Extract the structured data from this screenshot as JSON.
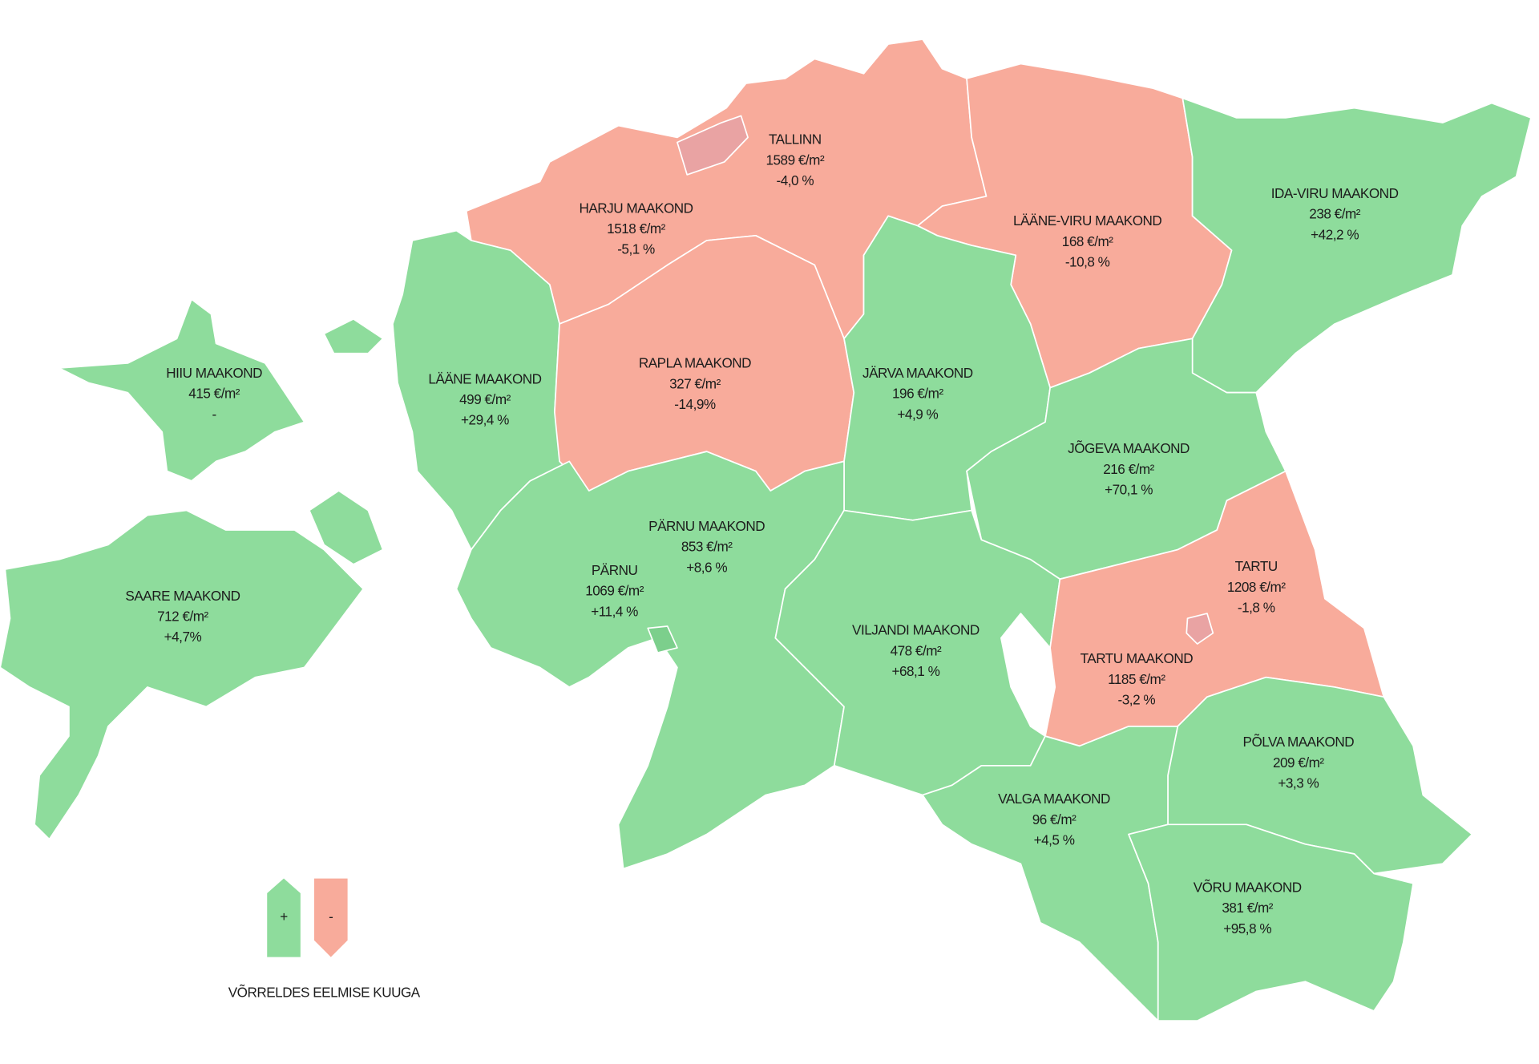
{
  "regions": [
    {
      "name": "HARJU MAAKOND",
      "price": "1518 €/m²",
      "change": "-5,1 %",
      "color": "#f8ab9b"
    },
    {
      "name": "TALLINN",
      "price": "1589 €/m²",
      "change": "-4,0 %",
      "color": "#e9a3a3"
    },
    {
      "name": "LÄÄNE-VIRU MAAKOND",
      "price": "168 €/m²",
      "change": "-10,8 %",
      "color": "#f8ab9b"
    },
    {
      "name": "IDA-VIRU MAAKOND",
      "price": "238 €/m²",
      "change": "+42,2 %",
      "color": "#8edc9c"
    },
    {
      "name": "HIIU MAAKOND",
      "price": "415 €/m²",
      "change": "-",
      "color": "#8edc9c"
    },
    {
      "name": "LÄÄNE MAAKOND",
      "price": "499 €/m²",
      "change": "+29,4 %",
      "color": "#8edc9c"
    },
    {
      "name": "RAPLA MAAKOND",
      "price": "327 €/m²",
      "change": "-14,9%",
      "color": "#f8ab9b"
    },
    {
      "name": "JÄRVA MAAKOND",
      "price": "196 €/m²",
      "change": "+4,9 %",
      "color": "#8edc9c"
    },
    {
      "name": "JÕGEVA MAAKOND",
      "price": "216 €/m²",
      "change": "+70,1 %",
      "color": "#8edc9c"
    },
    {
      "name": "PÄRNU MAAKOND",
      "price": "853 €/m²",
      "change": "+8,6 %",
      "color": "#8edc9c"
    },
    {
      "name": "PÄRNU",
      "price": "1069 €/m²",
      "change": "+11,4 %",
      "color": "#7ccf8c"
    },
    {
      "name": "SAARE MAAKOND",
      "price": "712 €/m²",
      "change": "+4,7%",
      "color": "#8edc9c"
    },
    {
      "name": "VILJANDI MAAKOND",
      "price": "478 €/m²",
      "change": "+68,1 %",
      "color": "#8edc9c"
    },
    {
      "name": "TARTU MAAKOND",
      "price": "1185 €/m²",
      "change": "-3,2 %",
      "color": "#f8ab9b"
    },
    {
      "name": "TARTU",
      "price": "1208 €/m²",
      "change": "-1,8 %",
      "color": "#e9a3a3"
    },
    {
      "name": "PÕLVA MAAKOND",
      "price": "209 €/m²",
      "change": "+3,3 %",
      "color": "#8edc9c"
    },
    {
      "name": "VALGA MAAKOND",
      "price": "96 €/m²",
      "change": "+4,5 %",
      "color": "#8edc9c"
    },
    {
      "name": "VÕRU MAAKOND",
      "price": "381 €/m²",
      "change": "+95,8 %",
      "color": "#8edc9c"
    }
  ],
  "legend": {
    "items": [
      {
        "label": "+",
        "color": "#8edc9c"
      },
      {
        "label": "-",
        "color": "#f8ab9b"
      }
    ],
    "caption": "VÕRRELDES EELMISE KUUGA"
  }
}
